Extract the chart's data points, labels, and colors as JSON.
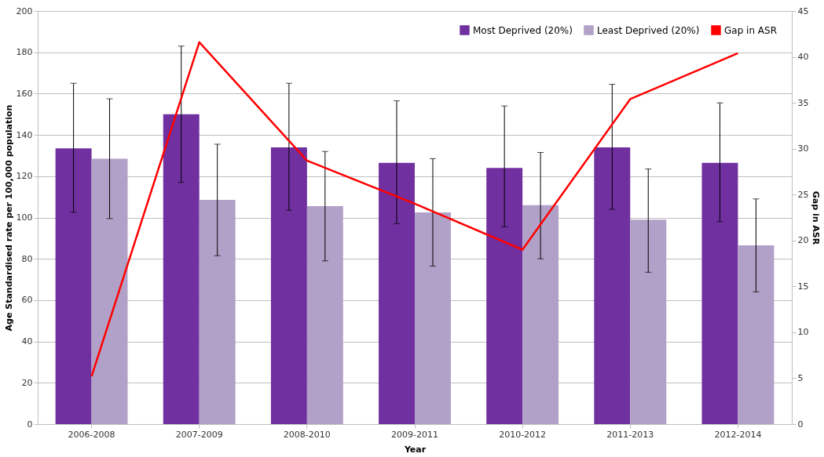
{
  "chart_data": {
    "type": "bar",
    "xlabel": "Year",
    "ylabel": "Age Standardised rate per 100,000 population",
    "y2label": "Gap in ASR",
    "categories": [
      "2006-2008",
      "2007-2009",
      "2008-2010",
      "2009-2011",
      "2010-2012",
      "2011-2013",
      "2012-2014"
    ],
    "series": [
      {
        "name": "Most Deprived (20%)",
        "color": "#7030a0",
        "values": [
          133.5,
          150,
          134,
          126.5,
          124,
          134,
          126.5
        ],
        "errors": [
          [
            102.5,
            165
          ],
          [
            117,
            183
          ],
          [
            103.5,
            165
          ],
          [
            97,
            156.5
          ],
          [
            95.5,
            154
          ],
          [
            104,
            164.5
          ],
          [
            98,
            155.5
          ]
        ]
      },
      {
        "name": "Least Deprived (20%)",
        "color": "#b1a0c7",
        "values": [
          128.5,
          108.5,
          105.5,
          102.5,
          106,
          99,
          86.5
        ],
        "errors": [
          [
            99.5,
            157.5
          ],
          [
            81.5,
            135.5
          ],
          [
            79,
            132
          ],
          [
            76.5,
            128.5
          ],
          [
            80,
            131.5
          ],
          [
            73.5,
            123.5
          ],
          [
            64,
            109
          ]
        ]
      },
      {
        "name": "Gap in ASR",
        "type": "line",
        "axis": "y2",
        "color": "#ff0000",
        "values": [
          5.2,
          41.6,
          28.7,
          24,
          19,
          35.4,
          40.4
        ]
      }
    ],
    "ylim": [
      0,
      200
    ],
    "yticks": [
      0,
      20,
      40,
      60,
      80,
      100,
      120,
      140,
      160,
      180,
      200
    ],
    "y2lim": [
      0,
      45
    ],
    "y2ticks": [
      0,
      5,
      10,
      15,
      20,
      25,
      30,
      35,
      40,
      45
    ],
    "grid": "y",
    "legend": "top right"
  }
}
